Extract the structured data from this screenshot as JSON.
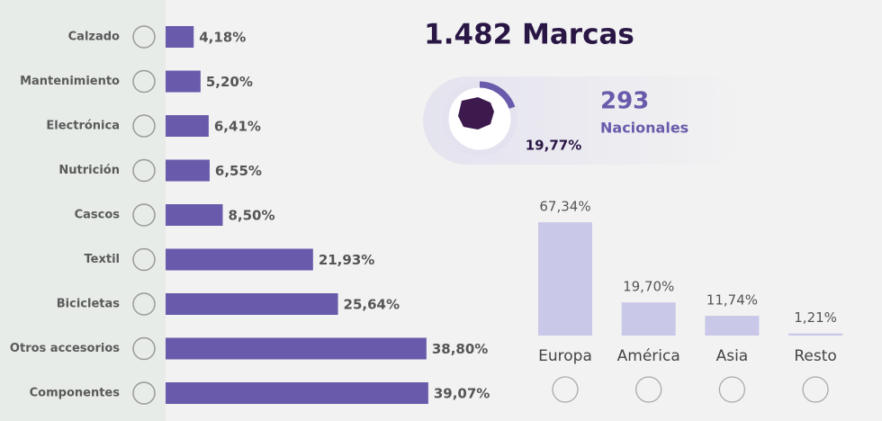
{
  "chart_data": [
    {
      "type": "hbar",
      "categories": [
        "Calzado",
        "Mantenimiento",
        "Electrónica",
        "Nutrición",
        "Cascos",
        "Textil",
        "Bicicletas",
        "Otros accesorios",
        "Componentes"
      ],
      "values": [
        4.18,
        5.2,
        6.41,
        6.55,
        8.5,
        21.93,
        25.64,
        38.8,
        39.07
      ],
      "value_labels": [
        "4,18%",
        "5,20%",
        "6,41%",
        "6,55%",
        "8,50%",
        "21,93%",
        "25,64%",
        "38,80%",
        "39,07%"
      ],
      "color": "#6a5aab"
    },
    {
      "type": "pie",
      "title": "1.482 Marcas",
      "values": [
        19.77
      ],
      "value_labels": [
        "19,77%"
      ],
      "annotations": [
        "293",
        "Nacionales"
      ],
      "color": "#6a5aab"
    },
    {
      "type": "bar",
      "categories": [
        "Europa",
        "América",
        "Asia",
        "Resto"
      ],
      "values": [
        67.34,
        19.7,
        11.74,
        1.21
      ],
      "value_labels": [
        "67,34%",
        "19,70%",
        "11,74%",
        "1,21%"
      ],
      "color": "#c9c8e8"
    }
  ]
}
